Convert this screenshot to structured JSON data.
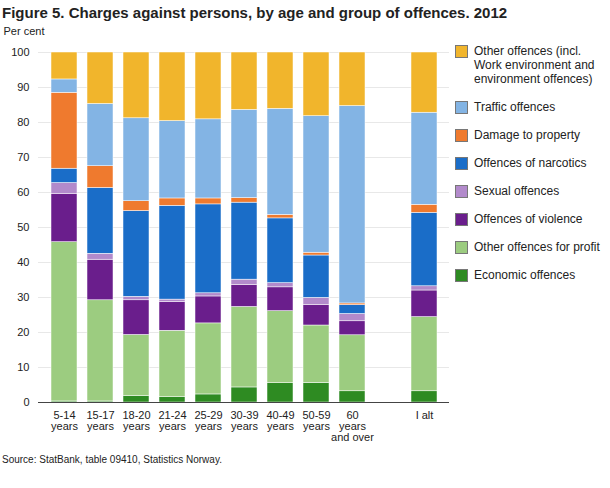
{
  "chart_data": {
    "type": "bar",
    "title": "Figure 5. Charges against persons, by age and group of offences. 2012",
    "y_label": "Per cent",
    "caption": "Source: StatBank, table 09410, Statistics Norway.",
    "stacked": true,
    "grid": true,
    "legend": "right",
    "categories": [
      "5-14\nyears",
      "15-17\nyears",
      "18-20\nyears",
      "21-24\nyears",
      "25-29\nyears",
      "30-39\nyears",
      "40-49\nyears",
      "50-59\nyears",
      "60\nyears\nand over",
      null,
      "I alt"
    ],
    "ylim": [
      0,
      100
    ],
    "yticks": [
      0,
      10,
      20,
      30,
      40,
      50,
      60,
      70,
      80,
      90,
      100
    ],
    "series": [
      {
        "name": "Economic offences",
        "color": "#2e8b22",
        "values": [
          0.3,
          0.3,
          1.8,
          1.5,
          2.3,
          4.3,
          5.5,
          5.6,
          3.2,
          null,
          3.2
        ]
      },
      {
        "name": "Other offences for profit",
        "color": "#9ccc80",
        "values": [
          45.5,
          28.9,
          17.5,
          19.0,
          20.3,
          23.0,
          20.6,
          16.4,
          16.0,
          null,
          21.2
        ]
      },
      {
        "name": "Offences of violence",
        "color": "#6a1e8c",
        "values": [
          13.7,
          11.6,
          9.9,
          8.2,
          7.7,
          6.3,
          6.8,
          5.9,
          4.0,
          null,
          7.6
        ]
      },
      {
        "name": "Sexual offences",
        "color": "#b28acb",
        "values": [
          3.2,
          1.7,
          1.0,
          0.7,
          0.9,
          1.5,
          1.2,
          2.0,
          2.1,
          null,
          1.2
        ]
      },
      {
        "name": "Offences of narcotics",
        "color": "#1a6dc8",
        "values": [
          4.1,
          18.8,
          24.5,
          26.8,
          25.4,
          22.0,
          18.5,
          12.1,
          2.5,
          null,
          21.0
        ]
      },
      {
        "name": "Damage to property",
        "color": "#ef7a2e",
        "values": [
          21.7,
          6.2,
          2.8,
          2.1,
          1.7,
          1.3,
          1.0,
          0.8,
          0.5,
          null,
          2.3
        ]
      },
      {
        "name": "Traffic offences",
        "color": "#83b4e4",
        "values": [
          3.8,
          17.8,
          23.7,
          22.1,
          22.6,
          25.2,
          30.3,
          39.0,
          56.4,
          null,
          26.3
        ]
      },
      {
        "name": "Other offences (incl. Work environment and environment offences)",
        "color": "#f1b52c",
        "values": [
          7.7,
          14.7,
          18.8,
          19.6,
          19.1,
          16.4,
          16.1,
          18.2,
          15.3,
          null,
          17.2
        ]
      }
    ]
  }
}
